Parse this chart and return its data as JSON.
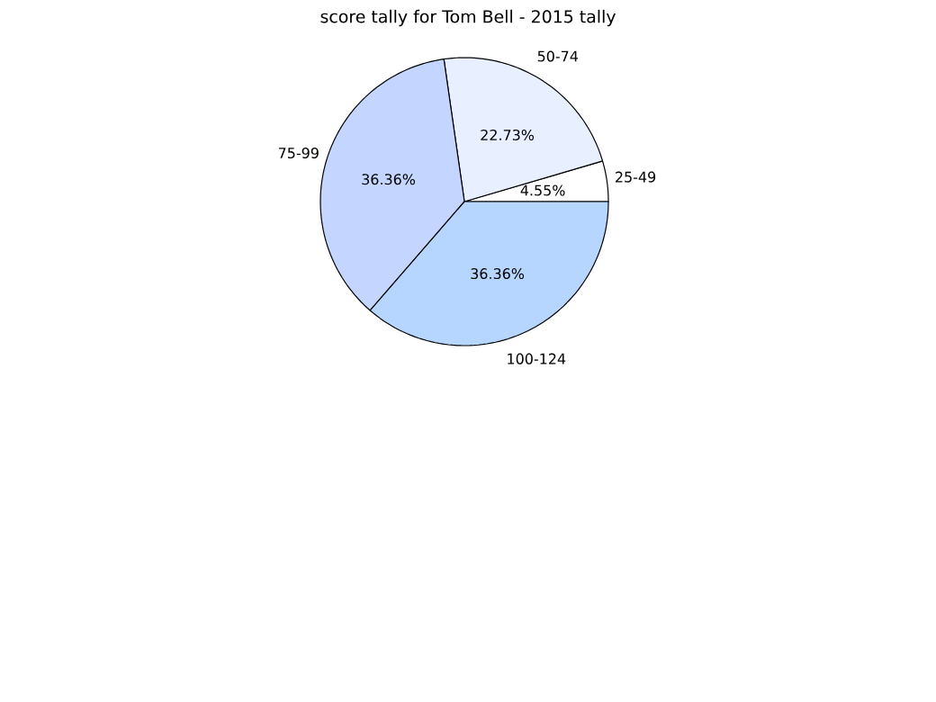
{
  "chart_data": {
    "type": "pie",
    "title": "score tally for Tom Bell - 2015 tally",
    "categories": [
      "25-49",
      "50-74",
      "75-99",
      "100-124"
    ],
    "values": [
      4.55,
      22.73,
      36.36,
      36.36
    ],
    "colors": [
      "#ffffff",
      "#e8f0ff",
      "#c4d6ff",
      "#b6d6ff"
    ],
    "value_labels": [
      "4.55%",
      "22.73%",
      "36.36%",
      "36.36%"
    ]
  }
}
